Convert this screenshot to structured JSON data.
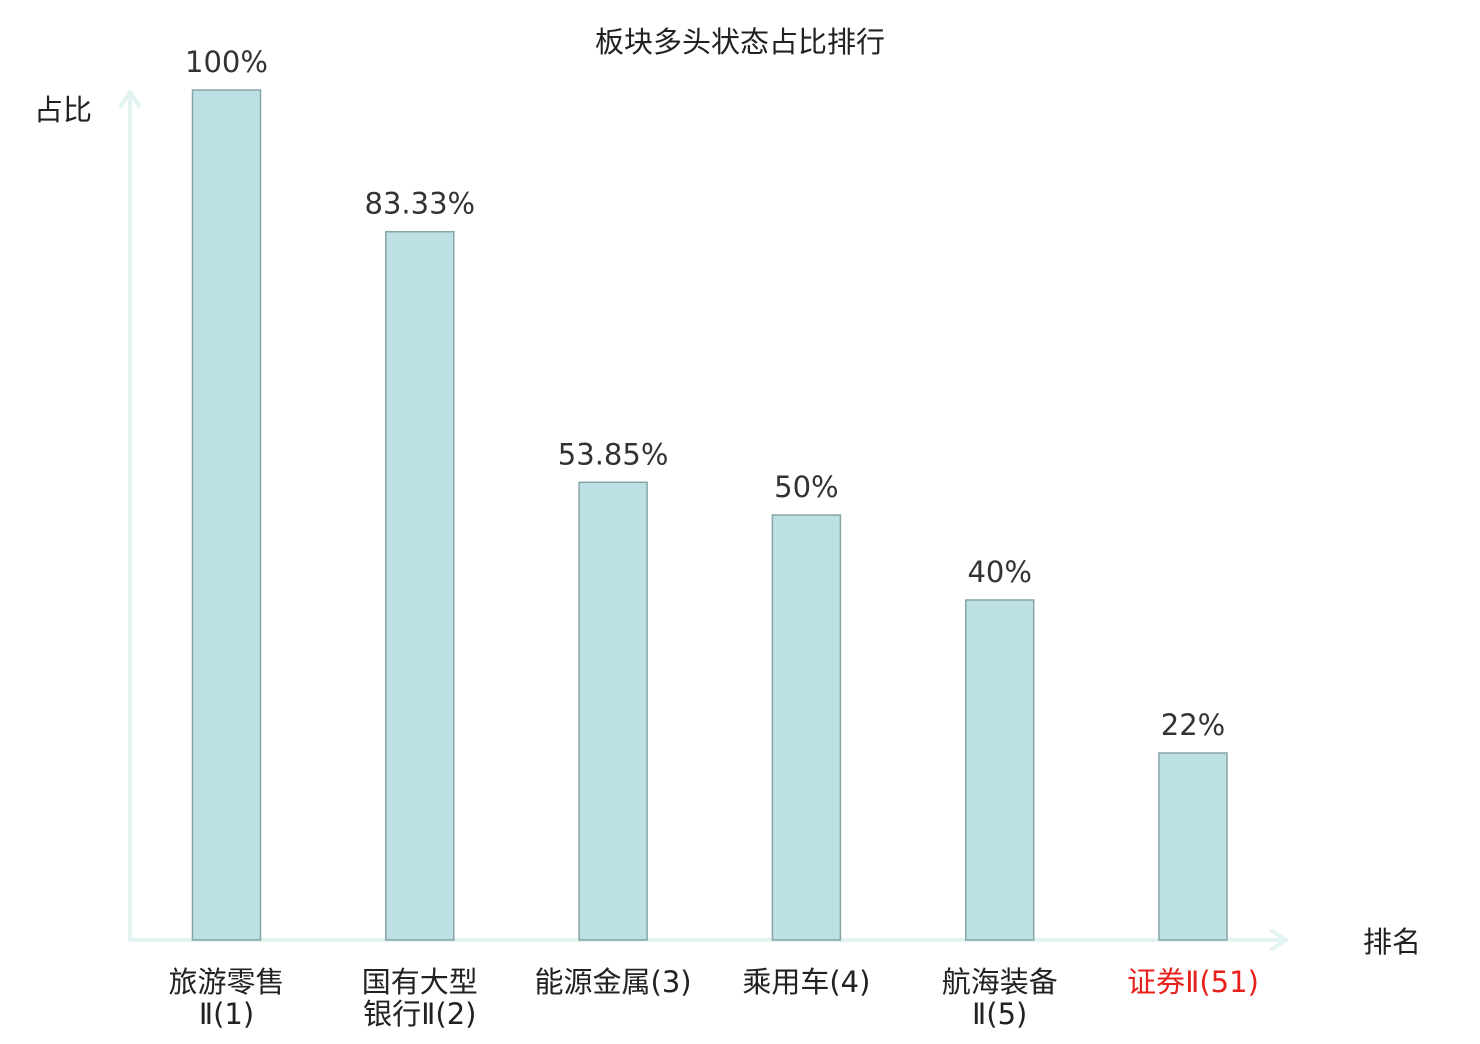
{
  "chart_data": {
    "type": "bar",
    "title": "板块多头状态占比排行",
    "ylabel": "占比",
    "xlabel": "排名",
    "ylim": [
      0,
      100
    ],
    "grid": false,
    "categories": [
      [
        "旅游零售",
        "Ⅱ(1)"
      ],
      [
        "国有大型",
        "银行Ⅱ(2)"
      ],
      [
        "能源金属(3)"
      ],
      [
        "乘用车(4)"
      ],
      [
        "航海装备",
        "Ⅱ(5)"
      ],
      [
        "证券Ⅱ(51)"
      ]
    ],
    "values": [
      100,
      83.33,
      53.85,
      50,
      40,
      22
    ],
    "value_labels": [
      "100%",
      "83.33%",
      "53.85%",
      "50%",
      "40%",
      "22%"
    ],
    "highlight_index": 5,
    "colors": {
      "bar_fill": "#bce0e3",
      "bar_stroke": "#85a4a6",
      "axis": "#e2f3f1",
      "highlight_text": "#e8201c",
      "text": "#222222",
      "value_text": "#333333"
    }
  }
}
